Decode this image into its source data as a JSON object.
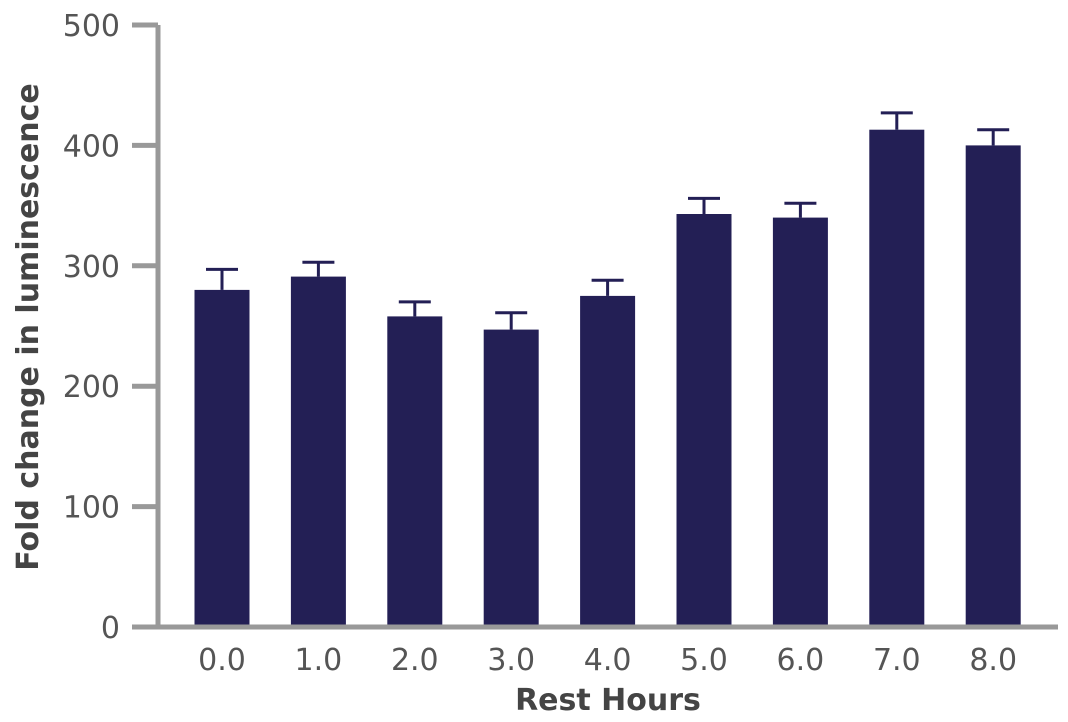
{
  "chart_data": {
    "type": "bar",
    "title": "",
    "xlabel": "Rest Hours",
    "ylabel": "Fold change in luminescence",
    "categories": [
      "0.0",
      "1.0",
      "2.0",
      "3.0",
      "4.0",
      "5.0",
      "6.0",
      "7.0",
      "8.0"
    ],
    "values": [
      280,
      291,
      258,
      247,
      275,
      343,
      340,
      413,
      400
    ],
    "error_bars": [
      17,
      12,
      12,
      14,
      13,
      13,
      12,
      14,
      13
    ],
    "ylim": [
      0,
      500
    ],
    "yticks": [
      "0",
      "100",
      "200",
      "300",
      "400",
      "500"
    ],
    "grid": false,
    "legend": "none",
    "colors": {
      "bar": "#231f55",
      "axis": "#999999",
      "error_bar": "#231f55"
    }
  }
}
